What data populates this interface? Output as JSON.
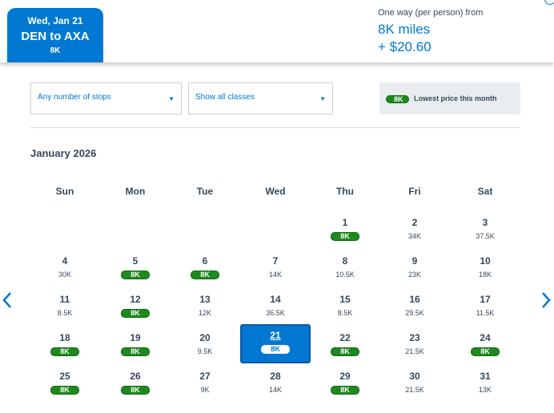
{
  "selected_tab": {
    "date": "Wed, Jan 21",
    "route": "DEN to AXA",
    "price": "8K"
  },
  "fare": {
    "label": "One way (per person) from",
    "miles": "8K miles",
    "taxes": "+ $20.60"
  },
  "filters": {
    "stops": "Any number of stops",
    "classes": "Show all classes"
  },
  "legend": {
    "badge": "8K",
    "text": "Lowest price this month"
  },
  "month_title": "January 2026",
  "weekdays": [
    "Sun",
    "Mon",
    "Tue",
    "Wed",
    "Thu",
    "Fri",
    "Sat"
  ],
  "colors": {
    "brand_blue": "#0078d2",
    "lowest_green": "#1e8a1e"
  },
  "calendar": [
    {
      "day": "1",
      "price": "8K",
      "lowest": true
    },
    {
      "day": "2",
      "price": "34K",
      "lowest": false
    },
    {
      "day": "3",
      "price": "37.5K",
      "lowest": false
    },
    {
      "day": "4",
      "price": "30K",
      "lowest": false
    },
    {
      "day": "5",
      "price": "8K",
      "lowest": true
    },
    {
      "day": "6",
      "price": "8K",
      "lowest": true
    },
    {
      "day": "7",
      "price": "14K",
      "lowest": false
    },
    {
      "day": "8",
      "price": "10.5K",
      "lowest": false
    },
    {
      "day": "9",
      "price": "23K",
      "lowest": false
    },
    {
      "day": "10",
      "price": "18K",
      "lowest": false
    },
    {
      "day": "11",
      "price": "8.5K",
      "lowest": false
    },
    {
      "day": "12",
      "price": "8K",
      "lowest": true
    },
    {
      "day": "13",
      "price": "12K",
      "lowest": false
    },
    {
      "day": "14",
      "price": "36.5K",
      "lowest": false
    },
    {
      "day": "15",
      "price": "8.5K",
      "lowest": false
    },
    {
      "day": "16",
      "price": "29.5K",
      "lowest": false
    },
    {
      "day": "17",
      "price": "11.5K",
      "lowest": false
    },
    {
      "day": "18",
      "price": "8K",
      "lowest": true
    },
    {
      "day": "19",
      "price": "8K",
      "lowest": true
    },
    {
      "day": "20",
      "price": "9.5K",
      "lowest": false
    },
    {
      "day": "21",
      "price": "8K",
      "lowest": true,
      "selected": true
    },
    {
      "day": "22",
      "price": "8K",
      "lowest": true
    },
    {
      "day": "23",
      "price": "21.5K",
      "lowest": false
    },
    {
      "day": "24",
      "price": "8K",
      "lowest": true
    },
    {
      "day": "25",
      "price": "8K",
      "lowest": true
    },
    {
      "day": "26",
      "price": "8K",
      "lowest": true
    },
    {
      "day": "27",
      "price": "9K",
      "lowest": false
    },
    {
      "day": "28",
      "price": "14K",
      "lowest": false
    },
    {
      "day": "29",
      "price": "8K",
      "lowest": true
    },
    {
      "day": "30",
      "price": "21.5K",
      "lowest": false
    },
    {
      "day": "31",
      "price": "13K",
      "lowest": false
    }
  ],
  "icons": {
    "prev": "chevron-left-icon",
    "next": "chevron-right-icon",
    "dropdown": "caret-down-icon"
  }
}
